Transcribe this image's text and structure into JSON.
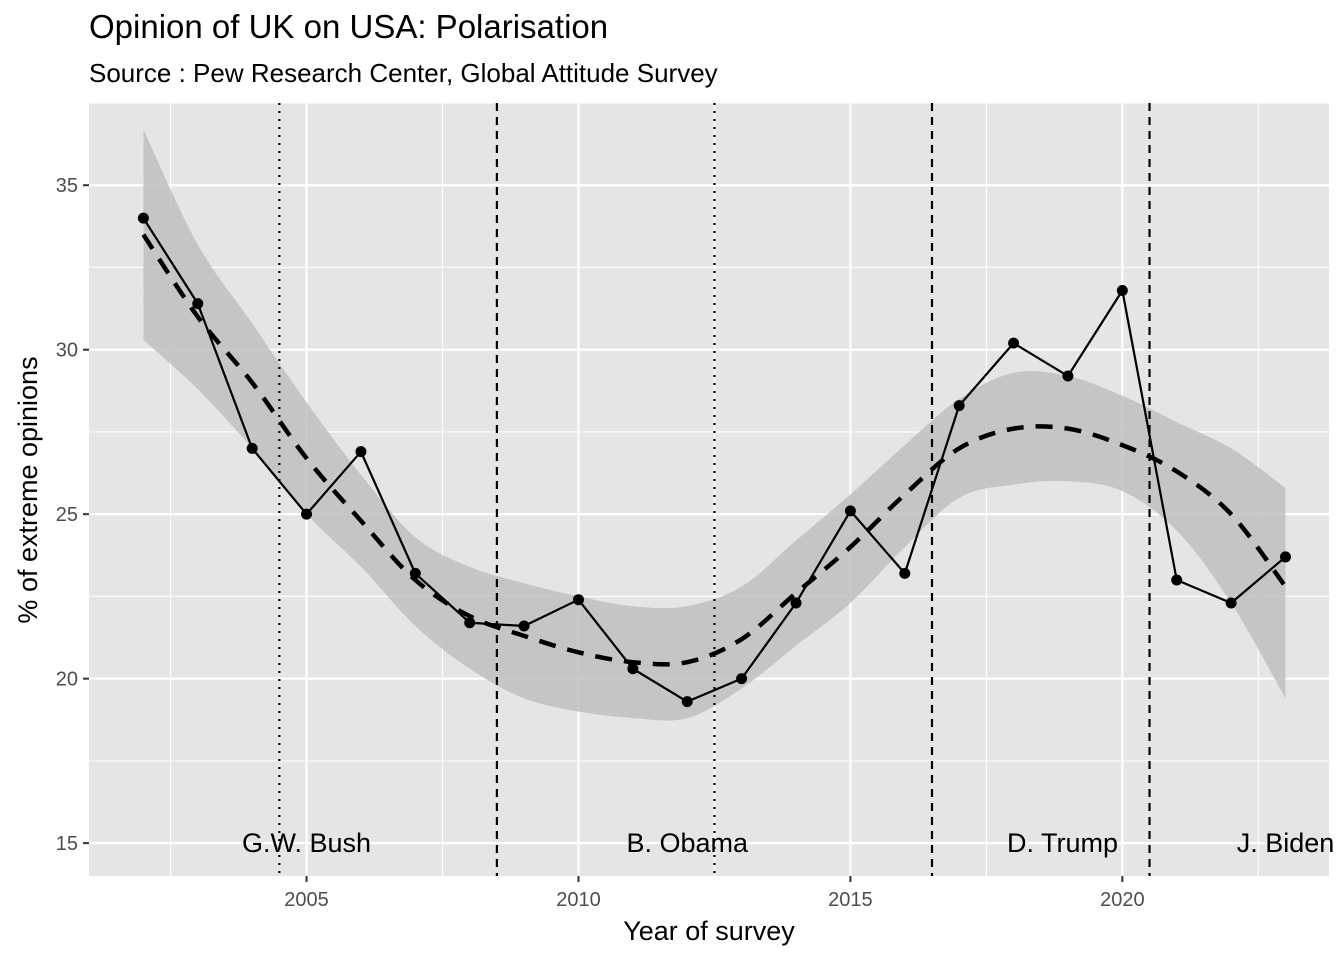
{
  "title": "Opinion of UK on USA: Polarisation",
  "subtitle": "Source : Pew Research Center, Global Attitude Survey",
  "chart_data": {
    "type": "line",
    "xlabel": "Year of survey",
    "ylabel": "% of extreme opinions",
    "xlim": [
      2001.0,
      2023.8
    ],
    "ylim": [
      14,
      37.5
    ],
    "x_ticks": [
      2005,
      2010,
      2015,
      2020
    ],
    "y_ticks": [
      15,
      20,
      25,
      30,
      35
    ],
    "grid": true,
    "series": [
      {
        "style": "solid line with points",
        "x": [
          2002,
          2003,
          2004,
          2005,
          2006,
          2007,
          2008,
          2009,
          2010,
          2011,
          2012,
          2013,
          2014,
          2015,
          2016,
          2017,
          2018,
          2019,
          2020,
          2021,
          2022,
          2023
        ],
        "values": [
          34.0,
          31.4,
          27.0,
          25.0,
          26.9,
          23.2,
          21.7,
          21.6,
          22.4,
          20.3,
          19.3,
          20.0,
          22.3,
          25.1,
          23.2,
          28.3,
          30.2,
          29.2,
          31.8,
          23.0,
          22.3,
          23.7
        ]
      },
      {
        "style": "dashed smoothed trend with confidence band",
        "x": [
          2002,
          2003,
          2004,
          2005,
          2006,
          2007,
          2008,
          2009,
          2010,
          2011,
          2012,
          2013,
          2014,
          2015,
          2016,
          2017,
          2018,
          2019,
          2020,
          2021,
          2022,
          2023
        ],
        "values": [
          33.5,
          31.0,
          29.0,
          26.7,
          24.8,
          23.0,
          21.9,
          21.3,
          20.8,
          20.5,
          20.5,
          21.2,
          22.6,
          24.0,
          25.6,
          27.0,
          27.6,
          27.6,
          27.1,
          26.3,
          25.0,
          22.8
        ],
        "band_lower": [
          30.3,
          28.8,
          27.0,
          25.0,
          23.4,
          21.6,
          20.3,
          19.4,
          19.0,
          18.8,
          18.8,
          19.7,
          21.0,
          22.3,
          24.0,
          25.5,
          25.9,
          26.0,
          25.7,
          24.5,
          22.3,
          19.4
        ],
        "band_upper": [
          36.7,
          33.2,
          30.8,
          28.4,
          26.2,
          24.3,
          23.4,
          22.9,
          22.5,
          22.2,
          22.2,
          22.8,
          24.2,
          25.6,
          27.1,
          28.5,
          29.3,
          29.2,
          28.6,
          27.8,
          27.0,
          25.8
        ]
      }
    ],
    "vlines": [
      {
        "x": 2004.5,
        "style": "dotted"
      },
      {
        "x": 2008.5,
        "style": "dashed"
      },
      {
        "x": 2012.5,
        "style": "dotted"
      },
      {
        "x": 2016.5,
        "style": "dashed"
      },
      {
        "x": 2020.5,
        "style": "dashed"
      }
    ],
    "annotations": [
      {
        "text": "G.W. Bush",
        "x": 2005,
        "y": 15
      },
      {
        "text": "B. Obama",
        "x": 2012,
        "y": 15
      },
      {
        "text": "D. Trump",
        "x": 2018.9,
        "y": 15
      },
      {
        "text": "J. Biden",
        "x": 2023,
        "y": 15
      }
    ],
    "colors": {
      "panel": "#e5e5e5",
      "grid": "#ffffff",
      "band": "#bfbfbf",
      "line": "#000000",
      "axis_text": "#4d4d4d"
    }
  }
}
